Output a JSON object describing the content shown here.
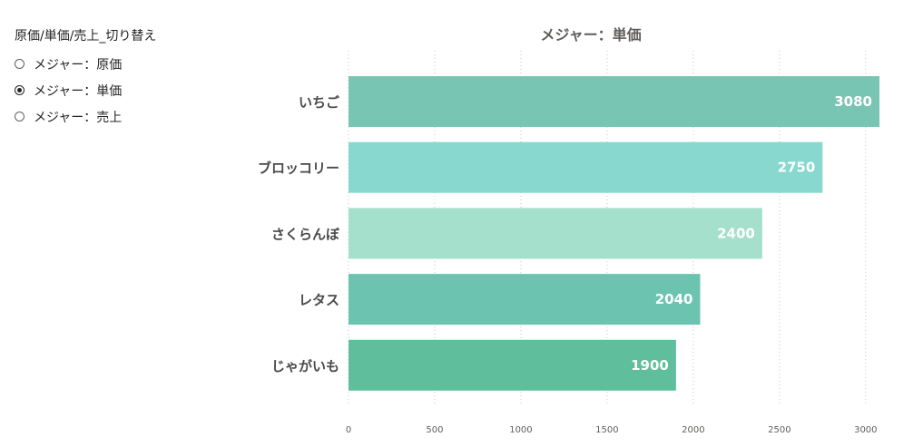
{
  "slicer": {
    "title": "原価/単価/売上_切り替え",
    "options": [
      {
        "label": "メジャー：原価",
        "selected": false
      },
      {
        "label": "メジャー：単価",
        "selected": true
      },
      {
        "label": "メジャー：売上",
        "selected": false
      }
    ]
  },
  "chart_data": {
    "type": "bar",
    "orientation": "horizontal",
    "title": "メジャー：単価",
    "categories": [
      "いちご",
      "ブロッコリー",
      "さくらんぼ",
      "レタス",
      "じゃがいも"
    ],
    "values": [
      3080,
      2750,
      2400,
      2040,
      1900
    ],
    "colors": [
      "#79c5b4",
      "#88d8d0",
      "#a5e0cc",
      "#6cc4b0",
      "#5fbf9c"
    ],
    "xlim": [
      0,
      3080
    ],
    "xticks": [
      0,
      500,
      1000,
      1500,
      2000,
      2500,
      3000
    ],
    "grid": true,
    "data_labels": true
  }
}
